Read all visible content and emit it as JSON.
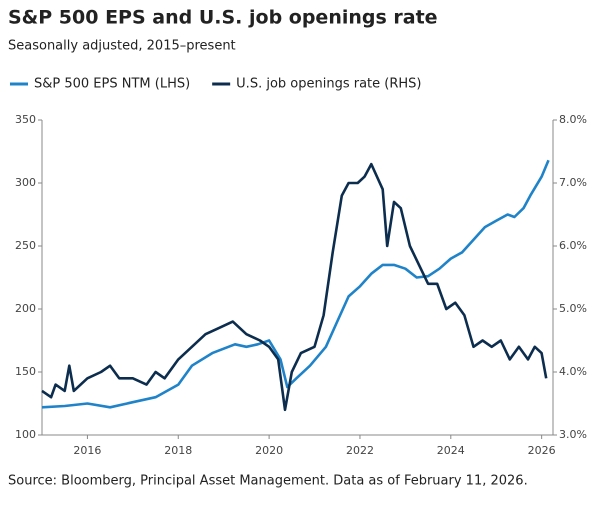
{
  "chart_data": {
    "type": "line",
    "title": "S&P 500 EPS and U.S. job openings rate",
    "subtitle": "Seasonally adjusted, 2015–present",
    "source": "Source: Bloomberg, Principal Asset Management. Data as of February 11, 2026.",
    "xlim": [
      2015,
      2026.25
    ],
    "xticks": [
      2016,
      2018,
      2020,
      2022,
      2024,
      2026
    ],
    "ylim": [
      100,
      350
    ],
    "yticks": [
      100,
      150,
      200,
      250,
      300,
      350
    ],
    "y2lim": [
      3,
      8
    ],
    "y2ticks": [
      {
        "value": 3,
        "label": "3.0%"
      },
      {
        "value": 4,
        "label": "4.0%"
      },
      {
        "value": 5,
        "label": "5.0%"
      },
      {
        "value": 6,
        "label": "6.0%"
      },
      {
        "value": 7,
        "label": "7.0%"
      },
      {
        "value": 8,
        "label": "8.0%"
      }
    ],
    "series": [
      {
        "name": "S&P 500 EPS NTM (LHS)",
        "color": "#1f83c9",
        "x": [
          2015,
          2015.5,
          2016,
          2016.5,
          2017,
          2017.5,
          2018,
          2018.3,
          2018.75,
          2019.25,
          2019.5,
          2019.75,
          2020,
          2020.25,
          2020.4,
          2020.6,
          2020.9,
          2021.25,
          2021.5,
          2021.75,
          2022,
          2022.25,
          2022.5,
          2022.75,
          2023,
          2023.25,
          2023.5,
          2023.75,
          2024,
          2024.25,
          2024.5,
          2024.75,
          2025,
          2025.25,
          2025.4,
          2025.6,
          2025.75,
          2026,
          2026.15
        ],
        "values": [
          122,
          123,
          125,
          122,
          126,
          130,
          140,
          155,
          165,
          172,
          170,
          172,
          175,
          160,
          138,
          145,
          155,
          170,
          190,
          210,
          218,
          228,
          235,
          235,
          232,
          225,
          226,
          232,
          240,
          245,
          255,
          265,
          270,
          275,
          273,
          280,
          290,
          305,
          318
        ]
      },
      {
        "name": "U.S. job openings rate (RHS)",
        "color": "#0c2d4e",
        "axis": "y2",
        "x": [
          2015,
          2015.2,
          2015.3,
          2015.5,
          2015.6,
          2015.7,
          2016,
          2016.3,
          2016.5,
          2016.7,
          2017,
          2017.3,
          2017.5,
          2017.7,
          2018,
          2018.3,
          2018.6,
          2018.9,
          2019.2,
          2019.5,
          2019.8,
          2020,
          2020.2,
          2020.35,
          2020.5,
          2020.7,
          2021,
          2021.2,
          2021.4,
          2021.6,
          2021.75,
          2021.95,
          2022.1,
          2022.25,
          2022.5,
          2022.6,
          2022.75,
          2022.9,
          2023.1,
          2023.3,
          2023.5,
          2023.7,
          2023.9,
          2024.1,
          2024.3,
          2024.5,
          2024.7,
          2024.9,
          2025.1,
          2025.3,
          2025.5,
          2025.7,
          2025.85,
          2026,
          2026.1
        ],
        "values": [
          3.7,
          3.6,
          3.8,
          3.7,
          4.1,
          3.7,
          3.9,
          4.0,
          4.1,
          3.9,
          3.9,
          3.8,
          4.0,
          3.9,
          4.2,
          4.4,
          4.6,
          4.7,
          4.8,
          4.6,
          4.5,
          4.4,
          4.2,
          3.4,
          4.0,
          4.3,
          4.4,
          4.9,
          5.9,
          6.8,
          7.0,
          7.0,
          7.1,
          7.3,
          6.9,
          6.0,
          6.7,
          6.6,
          6.0,
          5.7,
          5.4,
          5.4,
          5.0,
          5.1,
          4.9,
          4.4,
          4.5,
          4.4,
          4.5,
          4.2,
          4.4,
          4.2,
          4.4,
          4.3,
          3.9
        ]
      }
    ]
  }
}
